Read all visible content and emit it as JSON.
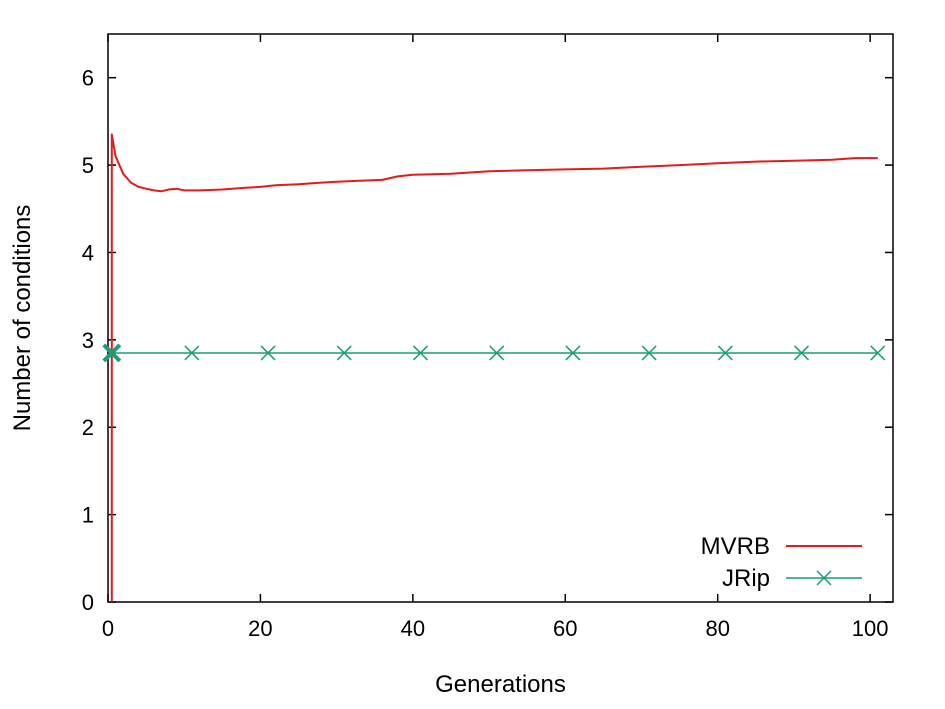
{
  "chart_data": {
    "type": "line",
    "title": "",
    "xlabel": "Generations",
    "ylabel": "Number of conditions",
    "xlim": [
      0,
      103
    ],
    "ylim": [
      0,
      6.5
    ],
    "xticks": [
      "0",
      "20",
      "40",
      "60",
      "80",
      "100"
    ],
    "yticks": [
      "0",
      "1",
      "2",
      "3",
      "4",
      "5",
      "6"
    ],
    "grid": false,
    "legend_position": "bottom-right",
    "series": [
      {
        "name": "MVRB",
        "color": "#e41a1c",
        "marker": "none",
        "x": [
          0.5,
          0.5,
          1,
          2,
          3,
          4,
          5,
          6,
          7,
          8,
          9,
          10,
          12,
          15,
          18,
          20,
          22,
          25,
          28,
          30,
          33,
          36,
          38,
          40,
          45,
          50,
          55,
          60,
          65,
          70,
          75,
          80,
          85,
          90,
          95,
          98,
          100,
          101
        ],
        "y": [
          0,
          5.35,
          5.1,
          4.9,
          4.8,
          4.75,
          4.73,
          4.71,
          4.7,
          4.72,
          4.73,
          4.71,
          4.71,
          4.72,
          4.74,
          4.75,
          4.77,
          4.78,
          4.8,
          4.81,
          4.82,
          4.83,
          4.87,
          4.89,
          4.9,
          4.93,
          4.94,
          4.95,
          4.96,
          4.98,
          5.0,
          5.02,
          5.04,
          5.05,
          5.06,
          5.08,
          5.08,
          5.08
        ]
      },
      {
        "name": "JRip",
        "color": "#1b9e77",
        "marker": "x",
        "x": [
          0.5,
          11,
          21,
          31,
          41,
          51,
          61,
          71,
          81,
          91,
          101
        ],
        "y": [
          2.85,
          2.85,
          2.85,
          2.85,
          2.85,
          2.85,
          2.85,
          2.85,
          2.85,
          2.85,
          2.85
        ]
      }
    ]
  }
}
